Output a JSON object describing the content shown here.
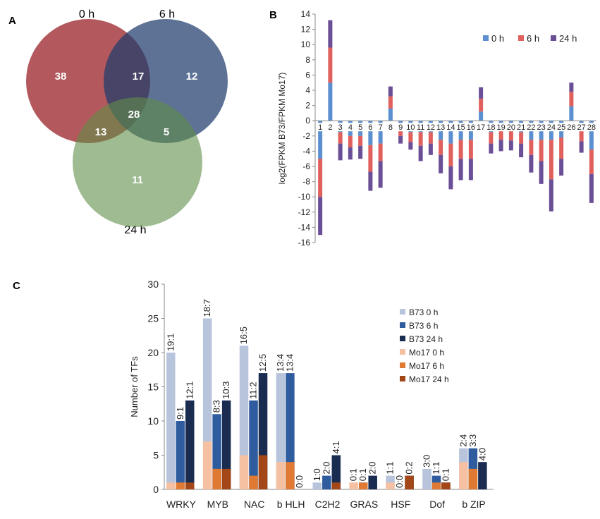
{
  "panels": {
    "A": {
      "label": "A"
    },
    "B": {
      "label": "B"
    },
    "C": {
      "label": "C"
    }
  },
  "venn": {
    "sets": [
      {
        "name": "0 h",
        "color": "#9d2a30"
      },
      {
        "name": "6 h",
        "color": "#1f3c6c"
      },
      {
        "name": "24 h",
        "color": "#5f8e47"
      }
    ],
    "regions": {
      "only_0h": "38",
      "only_6h": "12",
      "only_24h": "11",
      "0h_6h": "17",
      "0h_24h": "13",
      "6h_24h": "5",
      "all": "28"
    }
  },
  "chart_data": [
    {
      "panel": "B",
      "type": "bar",
      "stacked": true,
      "title": "",
      "xlabel": "",
      "ylabel": "log2(FPKM B73/FPKM Mo17)",
      "ylim": [
        -16,
        14
      ],
      "yticks": [
        -16,
        -14,
        -12,
        -10,
        -8,
        -6,
        -4,
        -2,
        0,
        2,
        4,
        6,
        8,
        10,
        12,
        14
      ],
      "categories": [
        "1",
        "2",
        "3",
        "4",
        "5",
        "6",
        "7",
        "8",
        "9",
        "10",
        "11",
        "12",
        "13",
        "14",
        "15",
        "16",
        "17",
        "18",
        "19",
        "20",
        "21",
        "22",
        "23",
        "24",
        "25",
        "26",
        "27",
        "28"
      ],
      "legend_position": "top-right",
      "series": [
        {
          "name": "0 h",
          "color": "#5b8fd0",
          "values": [
            -5.0,
            5.0,
            -1.5,
            -2.0,
            -2.0,
            -3.2,
            -3.0,
            1.6,
            -0.8,
            -1.5,
            -1.5,
            -1.5,
            -2.5,
            -3.0,
            -2.5,
            -2.5,
            1.2,
            -1.5,
            -1.2,
            -1.3,
            -1.5,
            -2.5,
            -2.5,
            -2.5,
            -2.2,
            1.9,
            -1.2,
            -3.8
          ]
        },
        {
          "name": "6 h",
          "color": "#e0605d",
          "values": [
            -5.0,
            4.6,
            -1.5,
            -1.5,
            -1.3,
            -3.5,
            -2.3,
            1.6,
            -1.2,
            -1.3,
            -1.8,
            -1.5,
            -2.0,
            -3.0,
            -2.5,
            -2.5,
            1.7,
            -1.5,
            -1.3,
            -1.3,
            -1.5,
            -2.0,
            -2.8,
            -5.2,
            -2.8,
            1.9,
            -1.5,
            -3.2
          ]
        },
        {
          "name": "24 h",
          "color": "#6a4f97",
          "values": [
            -5.0,
            3.6,
            -2.2,
            -1.6,
            -1.7,
            -2.5,
            -3.5,
            1.3,
            -1.0,
            -1.0,
            -2.0,
            -1.5,
            -2.4,
            -3.0,
            -2.8,
            -2.8,
            1.5,
            -1.3,
            -1.5,
            -1.3,
            -1.8,
            -2.3,
            -3.0,
            -4.2,
            -2.2,
            1.2,
            -1.5,
            -3.8
          ]
        }
      ]
    },
    {
      "panel": "C",
      "type": "bar",
      "stacked": false,
      "title": "",
      "xlabel": "",
      "ylabel": "Number of TFs",
      "ylim": [
        0,
        30
      ],
      "yticks": [
        0,
        5,
        10,
        15,
        20,
        25,
        30
      ],
      "categories": [
        "WRKY",
        "MYB",
        "NAC",
        "b HLH",
        "C2H2",
        "GRAS",
        "HSF",
        "Dof",
        "b ZIP"
      ],
      "legend_position": "right",
      "groups": [
        {
          "name": "0 h",
          "b73_color": "#b7c4dc",
          "mo17_color": "#f6c1a3"
        },
        {
          "name": "6 h",
          "b73_color": "#2f5c9e",
          "mo17_color": "#e07a33"
        },
        {
          "name": "24 h",
          "b73_color": "#1a2d50",
          "mo17_color": "#a34718"
        }
      ],
      "b73": [
        [
          20,
          10,
          13
        ],
        [
          25,
          11,
          13
        ],
        [
          21,
          13,
          17
        ],
        [
          17,
          17,
          0
        ],
        [
          1,
          2,
          5
        ],
        [
          1,
          1,
          2
        ],
        [
          2,
          0,
          2
        ],
        [
          3,
          2,
          1
        ],
        [
          6,
          6,
          4
        ]
      ],
      "mo17": [
        [
          1,
          1,
          1
        ],
        [
          7,
          3,
          3
        ],
        [
          5,
          2,
          5
        ],
        [
          4,
          4,
          0
        ],
        [
          0,
          0,
          1
        ],
        [
          1,
          1,
          0
        ],
        [
          1,
          0,
          2
        ],
        [
          0,
          1,
          1
        ],
        [
          4,
          3,
          0
        ]
      ],
      "labels": [
        [
          "19:1",
          "9:1",
          "12:1"
        ],
        [
          "18:7",
          "8:3",
          "10:3"
        ],
        [
          "16:5",
          "11:2",
          "12:5"
        ],
        [
          "13:4",
          "13:4",
          "0:0"
        ],
        [
          "1:0",
          "2:0",
          "4:1"
        ],
        [
          "0:1",
          "0:1",
          "2:0"
        ],
        [
          "1:1",
          "0:0",
          "0:2"
        ],
        [
          "3:0",
          "1:1",
          "0:1"
        ],
        [
          "2:4",
          "3:3",
          "4:0"
        ]
      ],
      "legend": [
        "B73 0 h",
        "B73 6 h",
        "B73 24 h",
        "Mo17 0 h",
        "Mo17 6 h",
        "Mo17 24 h"
      ]
    }
  ]
}
